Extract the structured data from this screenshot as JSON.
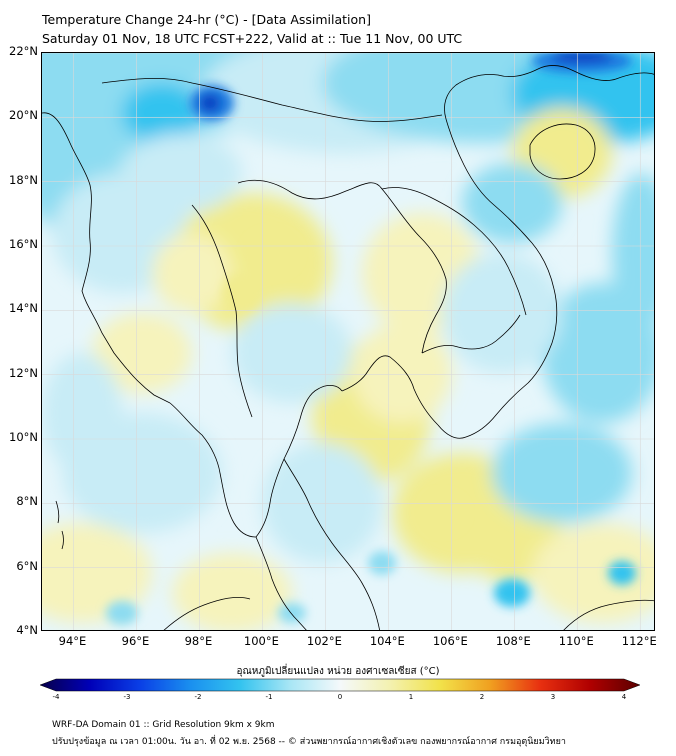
{
  "header": {
    "title": "Temperature Change 24-hr (°C) - [Data Assimilation]",
    "subtitle": "Saturday 01 Nov, 18 UTC FCST+222, Valid at :: Tue 11 Nov, 00 UTC"
  },
  "map": {
    "lat_labels": [
      "22°N",
      "20°N",
      "18°N",
      "16°N",
      "14°N",
      "12°N",
      "10°N",
      "8°N",
      "6°N",
      "4°N"
    ],
    "lon_labels": [
      "94°E",
      "96°E",
      "98°E",
      "100°E",
      "102°E",
      "104°E",
      "106°E",
      "108°E",
      "110°E",
      "112°E"
    ],
    "lat_range": [
      4,
      22
    ],
    "lon_range": [
      93,
      112.5
    ],
    "field_colors": {
      "background": "#e6f6fb",
      "warm_light": "#f6f3bc",
      "warm": "#f1ec8e",
      "cool_light": "#c8ecf6",
      "cool": "#8ddcf1",
      "cold": "#33c3ef",
      "very_cold": "#1f7be0",
      "extreme_cold": "#0f3fc2"
    },
    "coastline_color": "#000000",
    "gridline_color": "#d9d9d9"
  },
  "colorbar": {
    "title": "อุณหภูมิเปลี่ยนแปลง หน่วย องศาเซลเซียส (°C)",
    "ticks": [
      "-4",
      "-3",
      "-2",
      "-1",
      "0",
      "1",
      "2",
      "3",
      "4"
    ],
    "min": -4,
    "max": 4,
    "stops": [
      "#08004a",
      "#0000b8",
      "#0a3fe6",
      "#1a8fef",
      "#33c3ef",
      "#a8e6f5",
      "#f4f9fb",
      "#f3f1b0",
      "#f2e24a",
      "#f0a020",
      "#e83010",
      "#b00000",
      "#5a0000"
    ]
  },
  "footer": {
    "line1": "WRF-DA Domain 01 :: Grid Resolution 9km x 9km",
    "line2": "ปรับปรุงข้อมูล ณ เวลา 01:00น. วัน อา. ที่ 02 พ.ย. 2568 -- © ส่วนพยากรณ์อากาศเชิงตัวเลข กองพยากรณ์อากาศ กรมอุตุนิยมวิทยา"
  }
}
